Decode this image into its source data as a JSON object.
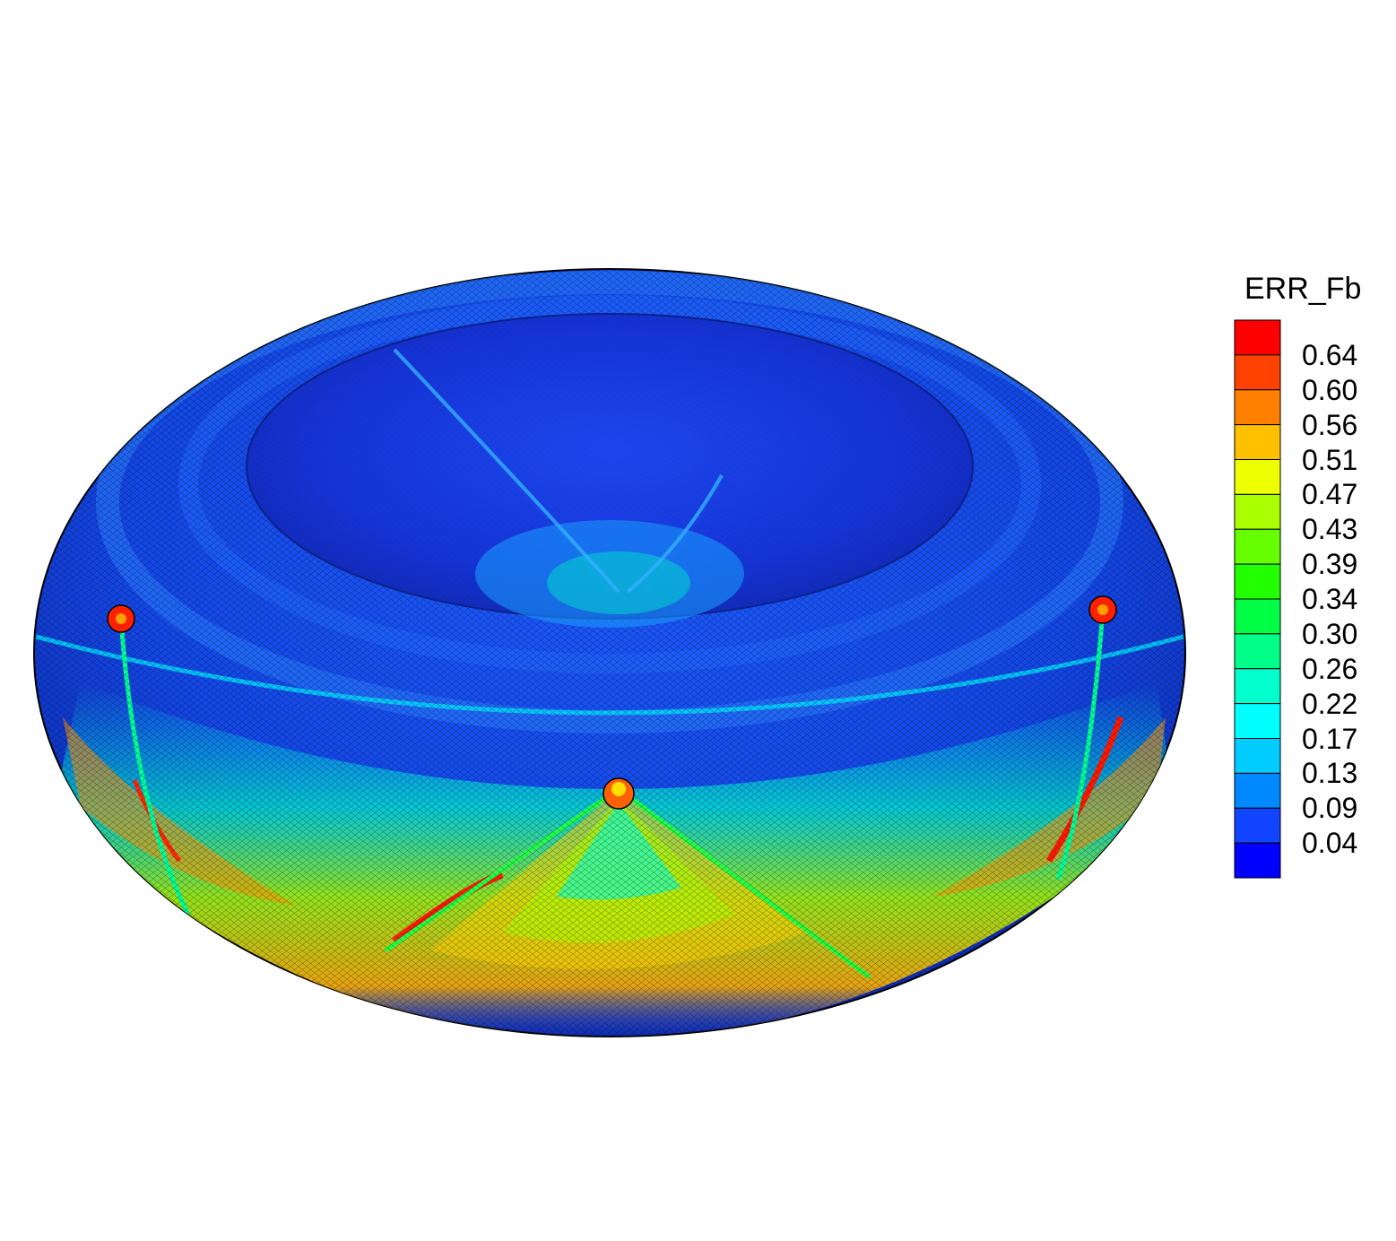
{
  "legend": {
    "title": "ERR_Fb",
    "levels": [
      "0.64",
      "0.60",
      "0.56",
      "0.51",
      "0.47",
      "0.43",
      "0.39",
      "0.34",
      "0.30",
      "0.26",
      "0.22",
      "0.17",
      "0.13",
      "0.09",
      "0.04"
    ],
    "colors": [
      "#ff0000",
      "#ff4200",
      "#ff8000",
      "#ffc000",
      "#eeff00",
      "#aaff00",
      "#66ff00",
      "#22ff00",
      "#00ff44",
      "#00ff88",
      "#00ffcc",
      "#00ffff",
      "#00ccff",
      "#0088ff",
      "#1144ff",
      "#0000ff"
    ]
  }
}
